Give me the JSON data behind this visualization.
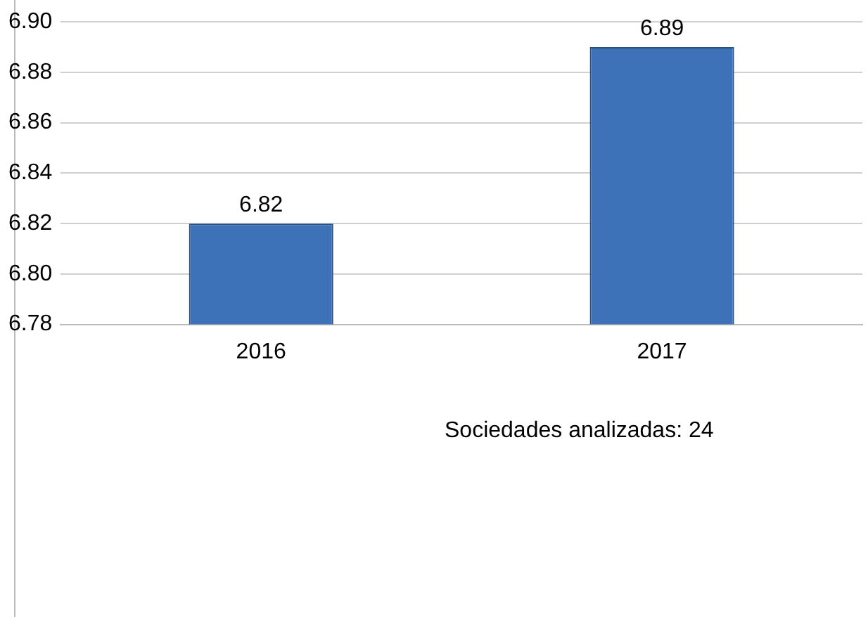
{
  "chart_data": {
    "type": "bar",
    "categories": [
      "2016",
      "2017"
    ],
    "values": [
      6.82,
      6.89
    ],
    "color": "#3d72b8",
    "ylim": [
      6.78,
      6.9
    ],
    "yticks": [
      {
        "value": 6.78,
        "label": "6.78"
      },
      {
        "value": 6.8,
        "label": "6.80"
      },
      {
        "value": 6.82,
        "label": "6.82"
      },
      {
        "value": 6.84,
        "label": "6.84"
      },
      {
        "value": 6.86,
        "label": "6.86"
      },
      {
        "value": 6.88,
        "label": "6.88"
      },
      {
        "value": 6.9,
        "label": "6.90"
      }
    ],
    "grid": "y",
    "data_labels": true,
    "annotations": [
      "Sociedades analizadas: 24"
    ]
  }
}
